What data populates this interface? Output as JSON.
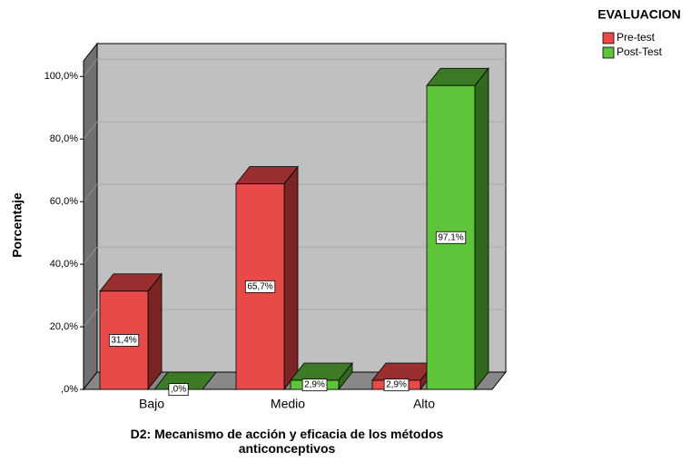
{
  "chart_data": {
    "type": "bar3d",
    "y_label": "Porcentaje",
    "x_label": "D2: Mecanismo de acción y eficacia de los métodos anticonceptivos",
    "legend_title": "EVALUACION",
    "categories": [
      "Bajo",
      "Medio",
      "Alto"
    ],
    "series": [
      {
        "name": "Pre-test",
        "color": "#e84a4a",
        "values": [
          31.4,
          65.7,
          2.9
        ],
        "value_labels": [
          "31,4%",
          "65,7%",
          "2,9%"
        ]
      },
      {
        "name": "Post-Test",
        "color": "#5ec43a",
        "values": [
          0,
          2.9,
          97.1
        ],
        "value_labels": [
          ",0%",
          "2,9%",
          "97,1%"
        ]
      }
    ],
    "ylim": [
      0,
      105
    ],
    "yticks": [
      {
        "value": 0,
        "label": ",0%"
      },
      {
        "value": 20,
        "label": "20,0%"
      },
      {
        "value": 40,
        "label": "40,0%"
      },
      {
        "value": 60,
        "label": "60,0%"
      },
      {
        "value": 80,
        "label": "80,0%"
      },
      {
        "value": 100,
        "label": "100,0%"
      }
    ],
    "grid": true
  }
}
